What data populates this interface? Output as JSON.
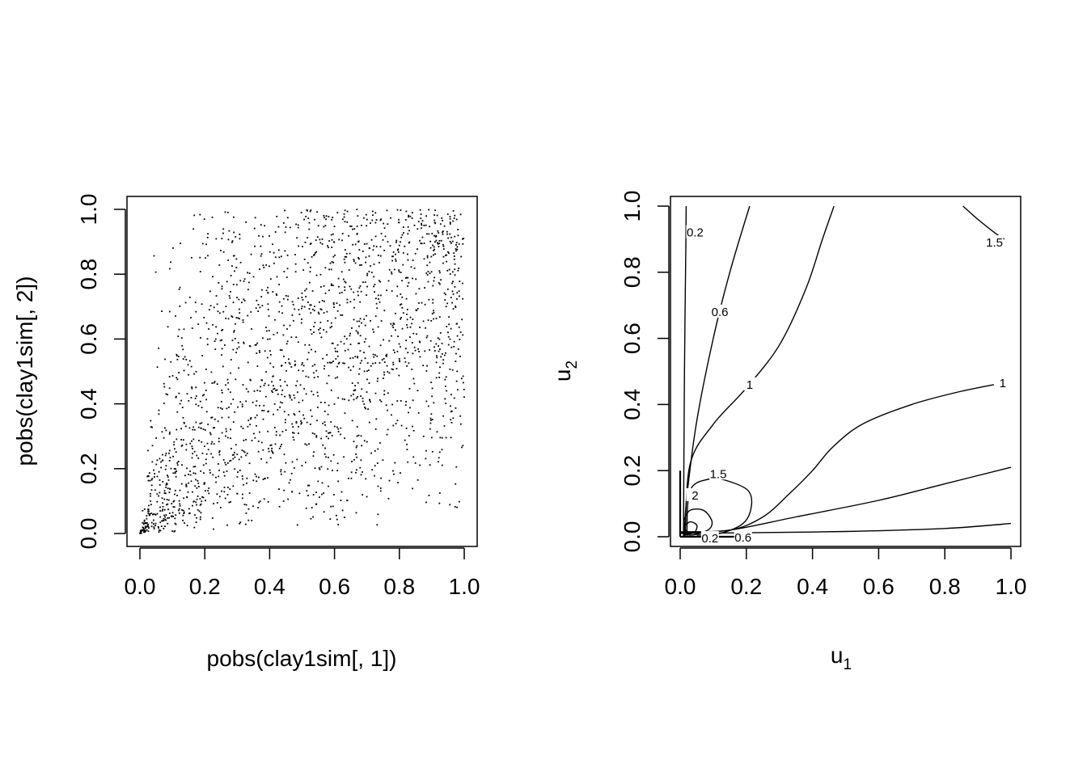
{
  "chart_data": [
    {
      "type": "scatter",
      "xlabel": "pobs(clay1sim[, 1])",
      "ylabel": "pobs(clay1sim[, 2])",
      "xlim": [
        0,
        1
      ],
      "ylim": [
        0,
        1
      ],
      "xticks": [
        "0.0",
        "0.2",
        "0.4",
        "0.6",
        "0.8",
        "1.0"
      ],
      "yticks": [
        "0.0",
        "0.2",
        "0.4",
        "0.6",
        "0.8",
        "1.0"
      ],
      "grid": false,
      "marker": "small dot",
      "n_points": 2000,
      "dependence": "Clayton-like, strong lower-tail clustering near (0,0)"
    },
    {
      "type": "contour",
      "xlabel": "u",
      "xlabel_sub": "1",
      "ylabel": "u",
      "ylabel_sub": "2",
      "xlim": [
        0,
        1
      ],
      "ylim": [
        0,
        1
      ],
      "xticks": [
        "0.0",
        "0.2",
        "0.4",
        "0.6",
        "0.8",
        "1.0"
      ],
      "yticks": [
        "0.0",
        "0.2",
        "0.4",
        "0.6",
        "0.8",
        "1.0"
      ],
      "grid": false,
      "contour_labels": [
        {
          "text": "0.2",
          "x": 0.045,
          "y": 0.92
        },
        {
          "text": "0.6",
          "x": 0.12,
          "y": 0.68
        },
        {
          "text": "1",
          "x": 0.21,
          "y": 0.46
        },
        {
          "text": "1.5",
          "x": 0.95,
          "y": 0.89
        },
        {
          "text": "1",
          "x": 0.975,
          "y": 0.465
        },
        {
          "text": "1.5",
          "x": 0.115,
          "y": 0.19
        },
        {
          "text": "2",
          "x": 0.045,
          "y": 0.125
        },
        {
          "text": "0.2",
          "x": 0.09,
          "y": -0.005
        },
        {
          "text": "0.6",
          "x": 0.19,
          "y": -0.003
        }
      ],
      "contours": [
        {
          "level": "0.2",
          "points": [
            [
              0.01,
              0.0
            ],
            [
              0.011,
              0.2
            ],
            [
              0.013,
              0.5
            ],
            [
              0.017,
              0.88
            ],
            [
              0.018,
              1.0
            ]
          ]
        },
        {
          "level": "0.2",
          "points": [
            [
              0.0,
              0.01
            ],
            [
              0.2,
              0.012
            ],
            [
              0.5,
              0.016
            ],
            [
              0.8,
              0.025
            ],
            [
              1.0,
              0.04
            ]
          ]
        },
        {
          "level": "0.6",
          "points": [
            [
              0.012,
              0.0
            ],
            [
              0.02,
              0.12
            ],
            [
              0.05,
              0.35
            ],
            [
              0.1,
              0.6
            ],
            [
              0.15,
              0.8
            ],
            [
              0.21,
              1.0
            ]
          ]
        },
        {
          "level": "0.6",
          "points": [
            [
              0.0,
              0.012
            ],
            [
              0.15,
              0.02
            ],
            [
              0.35,
              0.06
            ],
            [
              0.6,
              0.11
            ],
            [
              0.8,
              0.16
            ],
            [
              1.0,
              0.21
            ]
          ]
        },
        {
          "level": "1",
          "points": [
            [
              0.015,
              0.0
            ],
            [
              0.03,
              0.22
            ],
            [
              0.1,
              0.34
            ],
            [
              0.2,
              0.45
            ],
            [
              0.3,
              0.58
            ],
            [
              0.38,
              0.75
            ],
            [
              0.43,
              0.9
            ],
            [
              0.465,
              1.0
            ]
          ]
        },
        {
          "level": "1",
          "points": [
            [
              0.0,
              0.015
            ],
            [
              0.15,
              0.02
            ],
            [
              0.25,
              0.06
            ],
            [
              0.33,
              0.13
            ],
            [
              0.4,
              0.2
            ],
            [
              0.46,
              0.27
            ],
            [
              0.55,
              0.34
            ],
            [
              0.7,
              0.4
            ],
            [
              0.85,
              0.44
            ],
            [
              1.0,
              0.47
            ]
          ]
        },
        {
          "level": "1.5",
          "points": [
            [
              0.02,
              0.0
            ],
            [
              0.03,
              0.14
            ],
            [
              0.09,
              0.175
            ],
            [
              0.14,
              0.17
            ],
            [
              0.205,
              0.14
            ],
            [
              0.215,
              0.09
            ],
            [
              0.19,
              0.04
            ],
            [
              0.12,
              0.01
            ],
            [
              0.05,
              0.005
            ]
          ]
        },
        {
          "level": "1.5",
          "points": [
            [
              0.855,
              1.0
            ],
            [
              0.9,
              0.96
            ],
            [
              0.95,
              0.92
            ],
            [
              0.98,
              0.9
            ]
          ]
        },
        {
          "level": "2",
          "points": [
            [
              0.01,
              0.05
            ],
            [
              0.03,
              0.08
            ],
            [
              0.07,
              0.08
            ],
            [
              0.095,
              0.05
            ],
            [
              0.09,
              0.025
            ],
            [
              0.06,
              0.01
            ],
            [
              0.03,
              0.005
            ],
            [
              0.01,
              0.01
            ]
          ]
        },
        {
          "level": "2",
          "points": [
            [
              0.01,
              0.03
            ],
            [
              0.03,
              0.045
            ],
            [
              0.05,
              0.035
            ],
            [
              0.045,
              0.015
            ],
            [
              0.025,
              0.008
            ],
            [
              0.01,
              0.01
            ]
          ]
        },
        {
          "level": "2",
          "points": [
            [
              0.008,
              0.012
            ],
            [
              0.015,
              0.02
            ],
            [
              0.022,
              0.014
            ],
            [
              0.018,
              0.008
            ],
            [
              0.01,
              0.008
            ]
          ]
        }
      ]
    }
  ]
}
